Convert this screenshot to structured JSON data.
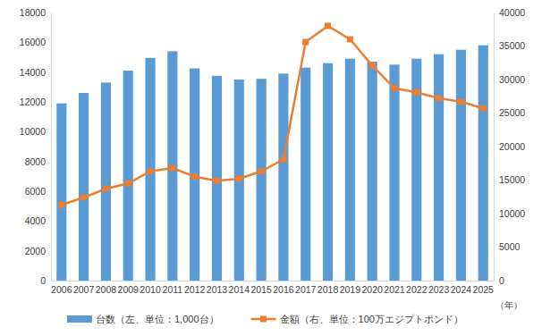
{
  "chart_data": {
    "type": "bar",
    "x_label": "（年）",
    "categories": [
      "2006",
      "2007",
      "2008",
      "2009",
      "2010",
      "2011",
      "2012",
      "2013",
      "2014",
      "2015",
      "2016",
      "2017",
      "2018",
      "2019",
      "2020",
      "2021",
      "2022",
      "2023",
      "2024",
      "2025"
    ],
    "series": [
      {
        "name": "台数（左、単位：1,000台）",
        "type": "bar",
        "color": "#5b9bd5",
        "values": [
          11900,
          12600,
          13300,
          14100,
          14950,
          15400,
          14250,
          13750,
          13500,
          13550,
          13900,
          14300,
          14600,
          14900,
          14700,
          14500,
          14900,
          15200,
          15500,
          15800
        ]
      },
      {
        "name": "金額（右、単位：100万エジプトポンド）",
        "type": "line",
        "axis": "y2",
        "color": "#ed7d31",
        "marker": "square",
        "values": [
          11300,
          12400,
          13700,
          14500,
          16300,
          16800,
          15500,
          14900,
          15200,
          16300,
          18100,
          35600,
          38000,
          36000,
          32100,
          28700,
          28100,
          27200,
          26700,
          25700
        ]
      }
    ],
    "ylim": [
      0,
      18000
    ],
    "yticks": [
      0,
      2000,
      4000,
      6000,
      8000,
      10000,
      12000,
      14000,
      16000,
      18000
    ],
    "y2lim": [
      0,
      40000
    ],
    "y2ticks": [
      0,
      5000,
      10000,
      15000,
      20000,
      25000,
      30000,
      35000,
      40000
    ],
    "grid": false,
    "legend": "bottom"
  }
}
